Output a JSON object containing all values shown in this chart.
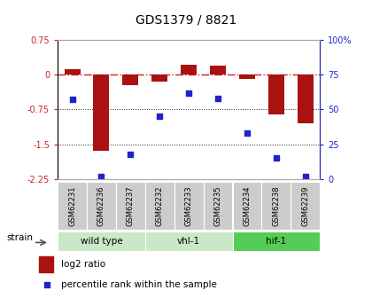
{
  "title": "GDS1379 / 8821",
  "samples": [
    "GSM62231",
    "GSM62236",
    "GSM62237",
    "GSM62232",
    "GSM62233",
    "GSM62235",
    "GSM62234",
    "GSM62238",
    "GSM62239"
  ],
  "log2_ratio": [
    0.12,
    -1.65,
    -0.22,
    -0.15,
    0.22,
    0.2,
    -0.1,
    -0.85,
    -1.05
  ],
  "percentile_rank": [
    57,
    2,
    18,
    45,
    62,
    58,
    33,
    15,
    2
  ],
  "ylim_left": [
    -2.25,
    0.75
  ],
  "ylim_right": [
    0,
    100
  ],
  "yticks_left": [
    0.75,
    0,
    -0.75,
    -1.5,
    -2.25
  ],
  "yticks_right": [
    100,
    75,
    50,
    25,
    0
  ],
  "bar_color": "#aa1111",
  "dot_color": "#2222cc",
  "hline_color": "#cc2222",
  "grid_color": "#222222",
  "label_log2": "log2 ratio",
  "label_pct": "percentile rank within the sample",
  "bar_width": 0.55,
  "group_labels": [
    {
      "label": "wild type",
      "start": 0,
      "end": 2,
      "color": "#c8e8c8"
    },
    {
      "label": "vhl-1",
      "start": 3,
      "end": 5,
      "color": "#c8e8c8"
    },
    {
      "label": "hif-1",
      "start": 6,
      "end": 8,
      "color": "#55cc55"
    }
  ],
  "sample_box_color": "#cccccc",
  "bg_color": "#ffffff"
}
